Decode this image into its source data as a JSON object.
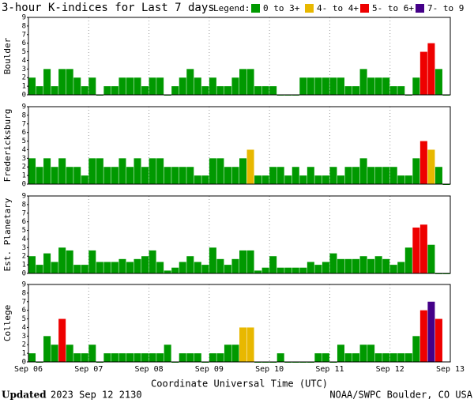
{
  "title": "3-hour K-indices for Last 7 days",
  "legend": {
    "title": "Legend:",
    "items": [
      {
        "label": "0 to 3+",
        "color": "#009900"
      },
      {
        "label": "4- to 4+",
        "color": "#e8b800"
      },
      {
        "label": "5- to 6+",
        "color": "#ee0000"
      },
      {
        "label": "7- to 9",
        "color": "#440088"
      }
    ]
  },
  "xticks": [
    "Sep 06",
    "Sep 07",
    "Sep 08",
    "Sep 09",
    "Sep 10",
    "Sep 11",
    "Sep 12",
    "Sep 13"
  ],
  "xlabel": "Coordinate Universal Time (UTC)",
  "footer": {
    "updated_label": "Updated",
    "updated": "2023 Sep 12 2130",
    "source": "NOAA/SWPC Boulder, CO USA"
  },
  "chart_data": [
    {
      "type": "bar",
      "ylabel": "Boulder",
      "ylim": [
        0,
        9
      ],
      "yticks": [
        0,
        1,
        2,
        3,
        4,
        5,
        6,
        7,
        8,
        9
      ],
      "grid": true,
      "values": [
        2,
        1,
        3,
        1,
        3,
        3,
        2,
        1,
        2,
        0,
        1,
        1,
        2,
        2,
        2,
        1,
        2,
        2,
        0,
        1,
        2,
        3,
        2,
        1,
        2,
        1,
        1,
        2,
        3,
        3,
        1,
        1,
        1,
        0,
        0,
        0,
        2,
        2,
        2,
        2,
        2,
        2,
        1,
        1,
        3,
        2,
        2,
        2,
        1,
        1,
        0,
        2,
        5,
        6,
        3,
        0
      ],
      "colors": [
        "#009900",
        "#009900",
        "#009900",
        "#009900",
        "#009900",
        "#009900",
        "#009900",
        "#009900",
        "#009900",
        "#009900",
        "#009900",
        "#009900",
        "#009900",
        "#009900",
        "#009900",
        "#009900",
        "#009900",
        "#009900",
        "#009900",
        "#009900",
        "#009900",
        "#009900",
        "#009900",
        "#009900",
        "#009900",
        "#009900",
        "#009900",
        "#009900",
        "#009900",
        "#009900",
        "#009900",
        "#009900",
        "#009900",
        "#009900",
        "#009900",
        "#009900",
        "#009900",
        "#009900",
        "#009900",
        "#009900",
        "#009900",
        "#009900",
        "#009900",
        "#009900",
        "#009900",
        "#009900",
        "#009900",
        "#009900",
        "#009900",
        "#009900",
        "#009900",
        "#009900",
        "#ee0000",
        "#ee0000",
        "#009900",
        "#009900"
      ]
    },
    {
      "type": "bar",
      "ylabel": "Fredericksburg",
      "ylim": [
        0,
        9
      ],
      "yticks": [
        0,
        1,
        2,
        3,
        4,
        5,
        6,
        7,
        8,
        9
      ],
      "grid": true,
      "values": [
        3,
        2,
        3,
        2,
        3,
        2,
        2,
        1,
        3,
        3,
        2,
        2,
        3,
        2,
        3,
        2,
        3,
        3,
        2,
        2,
        2,
        2,
        1,
        1,
        3,
        3,
        2,
        2,
        3,
        4,
        1,
        1,
        2,
        2,
        1,
        2,
        1,
        2,
        1,
        1,
        2,
        1,
        2,
        2,
        3,
        2,
        2,
        2,
        2,
        1,
        1,
        3,
        5,
        4,
        2,
        0
      ],
      "colors": [
        "#009900",
        "#009900",
        "#009900",
        "#009900",
        "#009900",
        "#009900",
        "#009900",
        "#009900",
        "#009900",
        "#009900",
        "#009900",
        "#009900",
        "#009900",
        "#009900",
        "#009900",
        "#009900",
        "#009900",
        "#009900",
        "#009900",
        "#009900",
        "#009900",
        "#009900",
        "#009900",
        "#009900",
        "#009900",
        "#009900",
        "#009900",
        "#009900",
        "#009900",
        "#e8b800",
        "#009900",
        "#009900",
        "#009900",
        "#009900",
        "#009900",
        "#009900",
        "#009900",
        "#009900",
        "#009900",
        "#009900",
        "#009900",
        "#009900",
        "#009900",
        "#009900",
        "#009900",
        "#009900",
        "#009900",
        "#009900",
        "#009900",
        "#009900",
        "#009900",
        "#009900",
        "#ee0000",
        "#e8b800",
        "#009900",
        "#009900"
      ]
    },
    {
      "type": "bar",
      "ylabel": "Est. Planetary",
      "ylim": [
        0,
        9
      ],
      "yticks": [
        0,
        1,
        2,
        3,
        4,
        5,
        6,
        7,
        8,
        9
      ],
      "grid": true,
      "values": [
        2,
        1,
        2.33,
        1.33,
        3,
        2.67,
        1,
        1,
        2.67,
        1.33,
        1.33,
        1.33,
        1.67,
        1.33,
        1.67,
        2,
        2.67,
        1.33,
        0.33,
        0.67,
        1.33,
        2,
        1.33,
        1,
        3,
        1.67,
        1,
        1.67,
        2.67,
        2.67,
        0.33,
        0.67,
        2,
        0.67,
        0.67,
        0.67,
        0.67,
        1.33,
        1,
        1.33,
        2.33,
        1.67,
        1.67,
        1.67,
        2,
        1.67,
        2,
        1.67,
        1,
        1.33,
        3,
        5.33,
        5.67,
        3.33,
        0,
        0
      ],
      "colors": [
        "#009900",
        "#009900",
        "#009900",
        "#009900",
        "#009900",
        "#009900",
        "#009900",
        "#009900",
        "#009900",
        "#009900",
        "#009900",
        "#009900",
        "#009900",
        "#009900",
        "#009900",
        "#009900",
        "#009900",
        "#009900",
        "#009900",
        "#009900",
        "#009900",
        "#009900",
        "#009900",
        "#009900",
        "#009900",
        "#009900",
        "#009900",
        "#009900",
        "#009900",
        "#009900",
        "#009900",
        "#009900",
        "#009900",
        "#009900",
        "#009900",
        "#009900",
        "#009900",
        "#009900",
        "#009900",
        "#009900",
        "#009900",
        "#009900",
        "#009900",
        "#009900",
        "#009900",
        "#009900",
        "#009900",
        "#009900",
        "#009900",
        "#009900",
        "#009900",
        "#ee0000",
        "#ee0000",
        "#009900",
        "#009900",
        "#009900"
      ]
    },
    {
      "type": "bar",
      "ylabel": "College",
      "ylim": [
        0,
        9
      ],
      "yticks": [
        0,
        1,
        2,
        3,
        4,
        5,
        6,
        7,
        8,
        9
      ],
      "grid": true,
      "values": [
        1,
        0,
        3,
        2,
        5,
        2,
        1,
        1,
        2,
        0,
        1,
        1,
        1,
        1,
        1,
        1,
        1,
        1,
        2,
        0,
        1,
        1,
        1,
        0,
        1,
        1,
        2,
        2,
        4,
        4,
        0,
        0,
        0,
        1,
        0,
        0,
        0,
        0,
        1,
        1,
        0,
        2,
        1,
        1,
        2,
        2,
        1,
        1,
        1,
        1,
        1,
        3,
        6,
        7,
        5,
        null
      ],
      "colors": [
        "#009900",
        "#009900",
        "#009900",
        "#009900",
        "#ee0000",
        "#009900",
        "#009900",
        "#009900",
        "#009900",
        "#009900",
        "#009900",
        "#009900",
        "#009900",
        "#009900",
        "#009900",
        "#009900",
        "#009900",
        "#009900",
        "#009900",
        "#009900",
        "#009900",
        "#009900",
        "#009900",
        "#009900",
        "#009900",
        "#009900",
        "#009900",
        "#009900",
        "#e8b800",
        "#e8b800",
        "#009900",
        "#009900",
        "#009900",
        "#009900",
        "#009900",
        "#009900",
        "#009900",
        "#009900",
        "#009900",
        "#009900",
        "#009900",
        "#009900",
        "#009900",
        "#009900",
        "#009900",
        "#009900",
        "#009900",
        "#009900",
        "#009900",
        "#009900",
        "#009900",
        "#009900",
        "#ee0000",
        "#440088",
        "#ee0000",
        "#009900"
      ]
    }
  ]
}
